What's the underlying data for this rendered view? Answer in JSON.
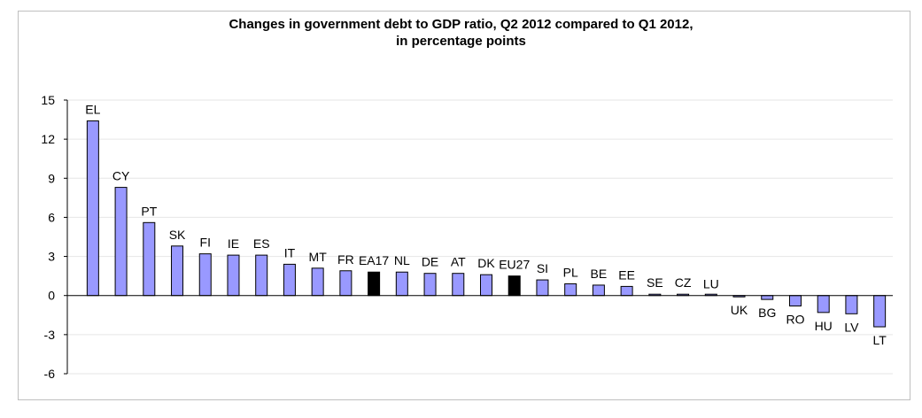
{
  "chart_data": {
    "type": "bar",
    "title": "Changes in government debt to GDP ratio, Q2 2012 compared to Q1 2012,",
    "subtitle": "in percentage points",
    "xlabel": "",
    "ylabel": "",
    "ylim": [
      -6,
      15
    ],
    "yticks": [
      15,
      12,
      9,
      6,
      3,
      0,
      -3,
      -6
    ],
    "grid": true,
    "legend": "none",
    "colors": {
      "country": "#9999ff",
      "aggregate": "#000000"
    },
    "categories": [
      "EL",
      "CY",
      "PT",
      "SK",
      "FI",
      "IE",
      "ES",
      "IT",
      "MT",
      "FR",
      "EA17",
      "NL",
      "DE",
      "AT",
      "DK",
      "EU27",
      "SI",
      "PL",
      "BE",
      "EE",
      "SE",
      "CZ",
      "LU",
      "UK",
      "BG",
      "RO",
      "HU",
      "LV",
      "LT"
    ],
    "values": [
      13.4,
      8.3,
      5.6,
      3.8,
      3.2,
      3.1,
      3.1,
      2.4,
      2.1,
      1.9,
      1.8,
      1.8,
      1.7,
      1.7,
      1.6,
      1.5,
      1.2,
      0.9,
      0.8,
      0.7,
      0.1,
      0.1,
      0.0,
      -0.1,
      -0.3,
      -0.8,
      -1.3,
      -1.4,
      -2.4
    ],
    "aggregates": [
      "EA17",
      "EU27"
    ]
  }
}
